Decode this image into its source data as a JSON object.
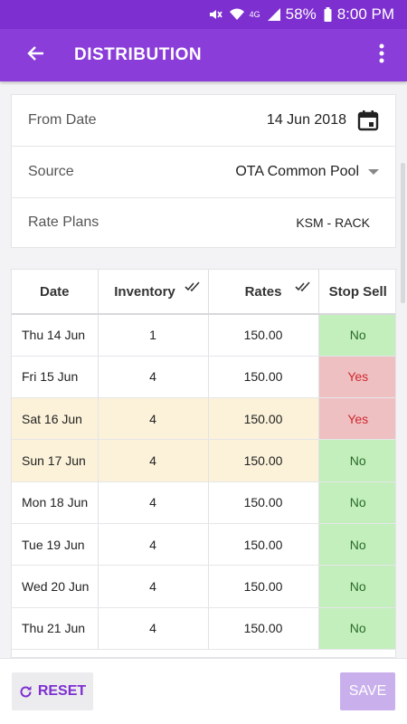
{
  "status_bar": {
    "battery": "58%",
    "time": "8:00 PM",
    "network": "4G"
  },
  "app_bar": {
    "title": "DISTRIBUTION"
  },
  "form": {
    "from_date_label": "From Date",
    "from_date_value": "14 Jun 2018",
    "source_label": "Source",
    "source_value": "OTA Common Pool",
    "rate_plans_label": "Rate Plans",
    "rate_plans_value": "KSM - RACK"
  },
  "table": {
    "headers": [
      "Date",
      "Inventory",
      "Rates",
      "Stop Sell"
    ],
    "rows": [
      {
        "date": "Thu 14 Jun",
        "inventory": "1",
        "rate": "150.00",
        "stop_sell": "No",
        "weekend": false
      },
      {
        "date": "Fri 15 Jun",
        "inventory": "4",
        "rate": "150.00",
        "stop_sell": "Yes",
        "weekend": false
      },
      {
        "date": "Sat 16 Jun",
        "inventory": "4",
        "rate": "150.00",
        "stop_sell": "Yes",
        "weekend": true
      },
      {
        "date": "Sun 17 Jun",
        "inventory": "4",
        "rate": "150.00",
        "stop_sell": "No",
        "weekend": true
      },
      {
        "date": "Mon 18 Jun",
        "inventory": "4",
        "rate": "150.00",
        "stop_sell": "No",
        "weekend": false
      },
      {
        "date": "Tue 19 Jun",
        "inventory": "4",
        "rate": "150.00",
        "stop_sell": "No",
        "weekend": false
      },
      {
        "date": "Wed 20 Jun",
        "inventory": "4",
        "rate": "150.00",
        "stop_sell": "No",
        "weekend": false
      },
      {
        "date": "Thu 21 Jun",
        "inventory": "4",
        "rate": "150.00",
        "stop_sell": "No",
        "weekend": false
      }
    ]
  },
  "buttons": {
    "reset_label": "RESET",
    "save_label": "SAVE"
  },
  "colors": {
    "primary": "#8a3dd9",
    "status_bar": "#7d2fd0",
    "no_bg": "#c2efbc",
    "yes_bg": "#eec0c2",
    "weekend_bg": "#fbf2d9"
  },
  "icons": [
    "mute-icon",
    "wifi-icon",
    "signal-icon",
    "battery-icon",
    "back-arrow-icon",
    "more-vert-icon",
    "calendar-icon",
    "dropdown-caret-icon",
    "double-check-icon",
    "refresh-icon"
  ]
}
